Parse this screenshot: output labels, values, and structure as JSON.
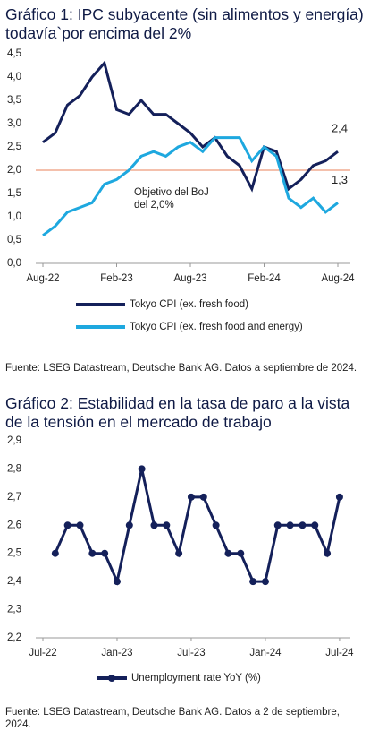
{
  "chart_data": [
    {
      "type": "line",
      "title": "Gráfico 1: IPC subyacente (sin alimentos y energía) todavía`por encima del 2%",
      "categories": [
        "Aug-22",
        null,
        null,
        null,
        null,
        null,
        "Feb-23",
        null,
        null,
        null,
        null,
        null,
        "Aug-23",
        null,
        null,
        null,
        null,
        null,
        "Feb-24",
        null,
        null,
        null,
        null,
        null,
        "Aug-24"
      ],
      "series": [
        {
          "name": "Tokyo CPI (ex. fresh food)",
          "color": "#14205a",
          "values": [
            2.6,
            2.8,
            3.4,
            3.6,
            4.0,
            4.3,
            3.3,
            3.2,
            3.5,
            3.2,
            3.2,
            3.0,
            2.8,
            2.5,
            2.7,
            2.3,
            2.1,
            1.6,
            2.5,
            2.4,
            1.6,
            1.8,
            2.1,
            2.2,
            2.4
          ],
          "value_labels": [
            null,
            null,
            null,
            null,
            null,
            null,
            null,
            null,
            null,
            null,
            null,
            null,
            null,
            null,
            null,
            null,
            null,
            null,
            null,
            null,
            null,
            null,
            null,
            null,
            "2,4"
          ]
        },
        {
          "name": "Tokyo CPI (ex. fresh food and energy)",
          "color": "#1ea8df",
          "values": [
            0.6,
            0.8,
            1.1,
            1.2,
            1.3,
            1.7,
            1.8,
            2.0,
            2.3,
            2.4,
            2.3,
            2.5,
            2.6,
            2.4,
            2.7,
            2.7,
            2.7,
            2.2,
            2.5,
            2.3,
            1.4,
            1.2,
            1.4,
            1.1,
            1.3
          ],
          "value_labels": [
            null,
            null,
            null,
            null,
            null,
            null,
            null,
            null,
            null,
            null,
            null,
            null,
            null,
            null,
            null,
            null,
            null,
            null,
            null,
            null,
            null,
            null,
            null,
            null,
            "1,3"
          ]
        }
      ],
      "reference_line": {
        "value": 2.0,
        "color": "#e8825a"
      },
      "annotation": [
        "Objetivo del BoJ",
        "del 2,0%"
      ],
      "ylim": [
        0,
        4.5
      ],
      "yticks": [
        {
          "value": 0,
          "label": "0,0"
        },
        {
          "value": 0.5,
          "label": "0,5"
        },
        {
          "value": 1,
          "label": "1,0"
        },
        {
          "value": 1.5,
          "label": "1,5"
        },
        {
          "value": 2,
          "label": "2,0"
        },
        {
          "value": 2.5,
          "label": "2,5"
        },
        {
          "value": 3,
          "label": "3,0"
        },
        {
          "value": 3.5,
          "label": "3,5"
        },
        {
          "value": 4,
          "label": "4,0"
        },
        {
          "value": 4.5,
          "label": "4,5"
        }
      ],
      "grid": false,
      "markers": false,
      "source": "Fuente: LSEG Datastream, Deutsche Bank AG. Datos a septiembre de 2024."
    },
    {
      "type": "line",
      "title": "Gráfico 2: Estabilidad en la tasa de paro a la vista de la tensión en el mercado de trabajo",
      "categories": [
        "Jul-22",
        null,
        null,
        null,
        null,
        null,
        "Jan-23",
        null,
        null,
        null,
        null,
        null,
        "Jul-23",
        null,
        null,
        null,
        null,
        null,
        "Jan-24",
        null,
        null,
        null,
        null,
        null,
        "Jul-24"
      ],
      "series": [
        {
          "name": "Unemployment rate YoY (%)",
          "color": "#14205a",
          "values": [
            null,
            2.5,
            2.6,
            2.6,
            2.5,
            2.5,
            2.4,
            2.6,
            2.8,
            2.6,
            2.6,
            2.5,
            2.7,
            2.7,
            2.6,
            2.5,
            2.5,
            2.4,
            2.4,
            2.6,
            2.6,
            2.6,
            2.6,
            2.5,
            2.7
          ]
        }
      ],
      "ylim": [
        2.2,
        2.9
      ],
      "yticks": [
        {
          "value": 2.2,
          "label": "2,2"
        },
        {
          "value": 2.3,
          "label": "2,3"
        },
        {
          "value": 2.4,
          "label": "2,4"
        },
        {
          "value": 2.5,
          "label": "2,5"
        },
        {
          "value": 2.6,
          "label": "2,6"
        },
        {
          "value": 2.7,
          "label": "2,7"
        },
        {
          "value": 2.8,
          "label": "2,8"
        },
        {
          "value": 2.9,
          "label": "2,9"
        }
      ],
      "grid": false,
      "markers": true,
      "source": "Fuente: LSEG Datastream, Deutsche Bank AG. Datos a 2 de septiembre, 2024."
    }
  ]
}
